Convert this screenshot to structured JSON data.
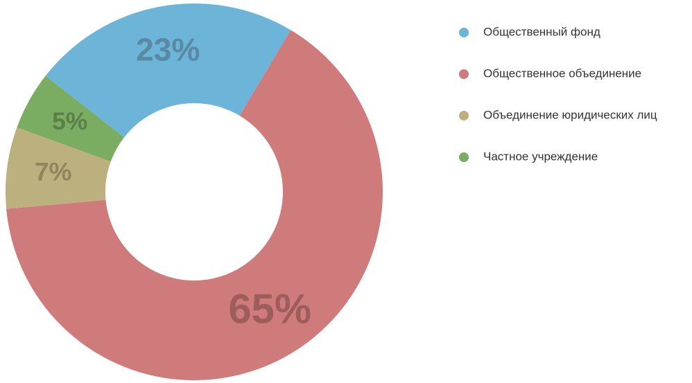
{
  "chart_data": {
    "type": "pie",
    "categories": [
      "Общественный фонд",
      "Общественное объединение",
      "Объединение юридических лиц",
      "Частное учреждение"
    ],
    "values": [
      23,
      65,
      7,
      5
    ],
    "value_labels": [
      "23%",
      "65%",
      "7%",
      "5%"
    ],
    "colors": [
      "#6cb4d8",
      "#d07b7b",
      "#bcb07e",
      "#7aac62"
    ],
    "label_colors": [
      "#5a8aa3",
      "#9c5d5b",
      "#8f865e",
      "#5a7f48"
    ],
    "legend": "right"
  }
}
